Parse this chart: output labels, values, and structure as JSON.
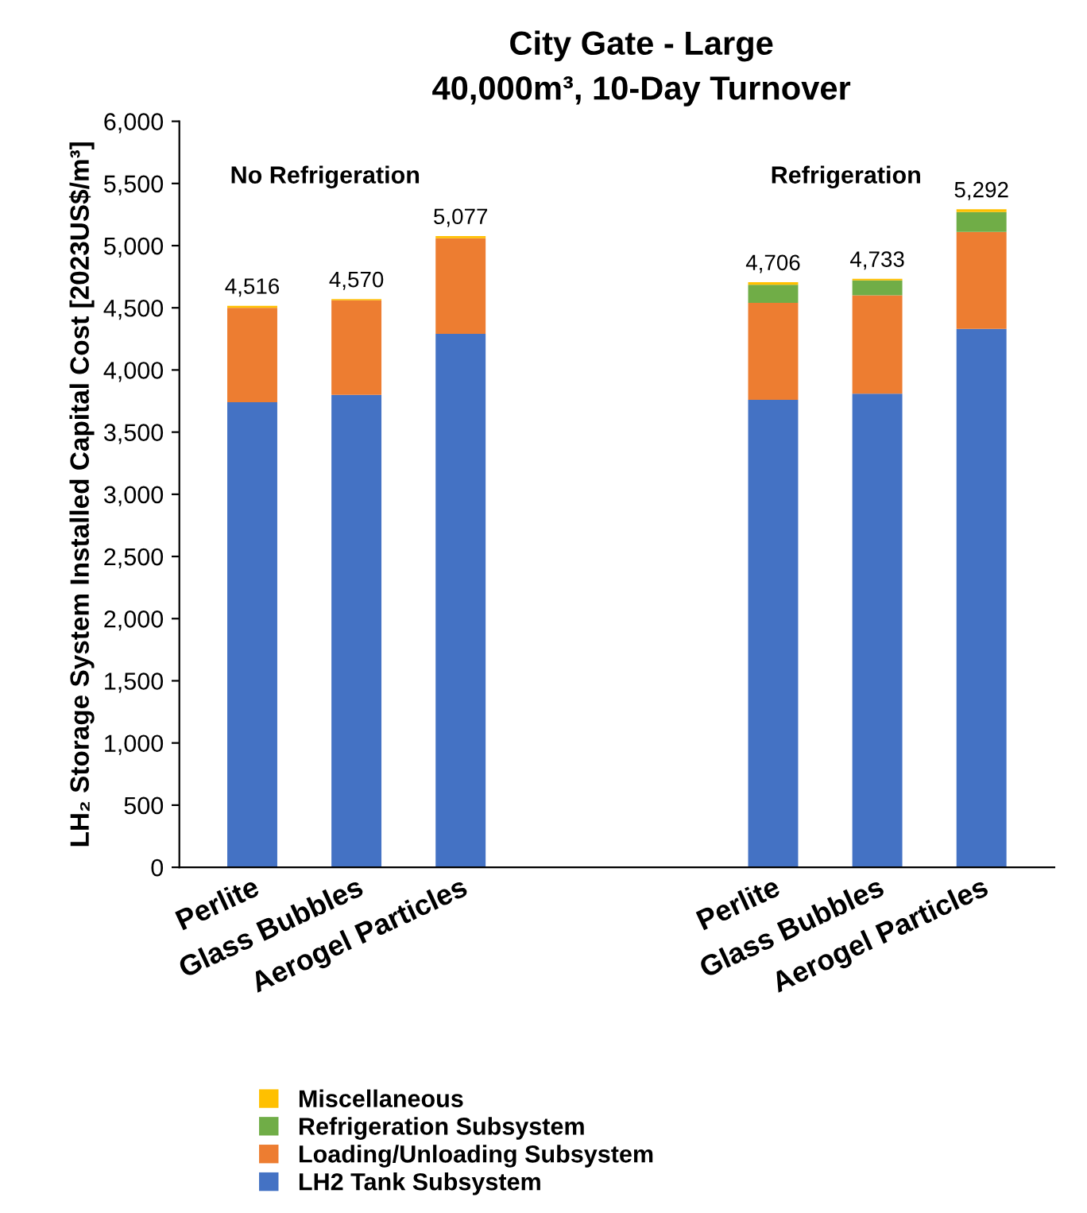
{
  "chart_data": {
    "type": "bar",
    "stacked": true,
    "title": "City Gate - Large",
    "subtitle": "40,000m³, 10-Day Turnover",
    "ylabel": "LH₂ Storage System Installed Capital Cost [2023US$/m³]",
    "categories": [
      "Perlite",
      "Glass Bubbles",
      "Aerogel Particles",
      null,
      null,
      "Perlite",
      "Glass Bubbles",
      "Aerogel Particles"
    ],
    "series": [
      {
        "name": "LH2 Tank Subsystem",
        "color": "#4472c4",
        "values": [
          3740,
          3800,
          4290,
          null,
          null,
          3760,
          3810,
          4330
        ]
      },
      {
        "name": "Loading/Unloading Subsystem",
        "color": "#ed7d31",
        "values": [
          760,
          760,
          770,
          null,
          null,
          780,
          790,
          780
        ]
      },
      {
        "name": "Refrigeration Subsystem",
        "color": "#70ad47",
        "values": [
          null,
          null,
          null,
          null,
          null,
          146,
          120,
          160
        ]
      },
      {
        "name": "Miscellaneous",
        "color": "#ffc000",
        "values": [
          16,
          10,
          17,
          null,
          null,
          20,
          13,
          22
        ]
      }
    ],
    "totals": [
      "4,516",
      "4,570",
      "5,077",
      null,
      null,
      "4,706",
      "4,733",
      "5,292"
    ],
    "annotations": [
      "No Refrigeration",
      "Refrigeration"
    ],
    "ylim": [
      0,
      6000
    ],
    "yticks": [
      {
        "value": 0,
        "label": "0"
      },
      {
        "value": 500,
        "label": "500"
      },
      {
        "value": 1000,
        "label": "1,000"
      },
      {
        "value": 1500,
        "label": "1,500"
      },
      {
        "value": 2000,
        "label": "2,000"
      },
      {
        "value": 2500,
        "label": "2,500"
      },
      {
        "value": 3000,
        "label": "3,000"
      },
      {
        "value": 3500,
        "label": "3,500"
      },
      {
        "value": 4000,
        "label": "4,000"
      },
      {
        "value": 4500,
        "label": "4,500"
      },
      {
        "value": 5000,
        "label": "5,000"
      },
      {
        "value": 5500,
        "label": "5,500"
      },
      {
        "value": 6000,
        "label": "6,000"
      }
    ],
    "grid": false,
    "legend": "bottom"
  }
}
